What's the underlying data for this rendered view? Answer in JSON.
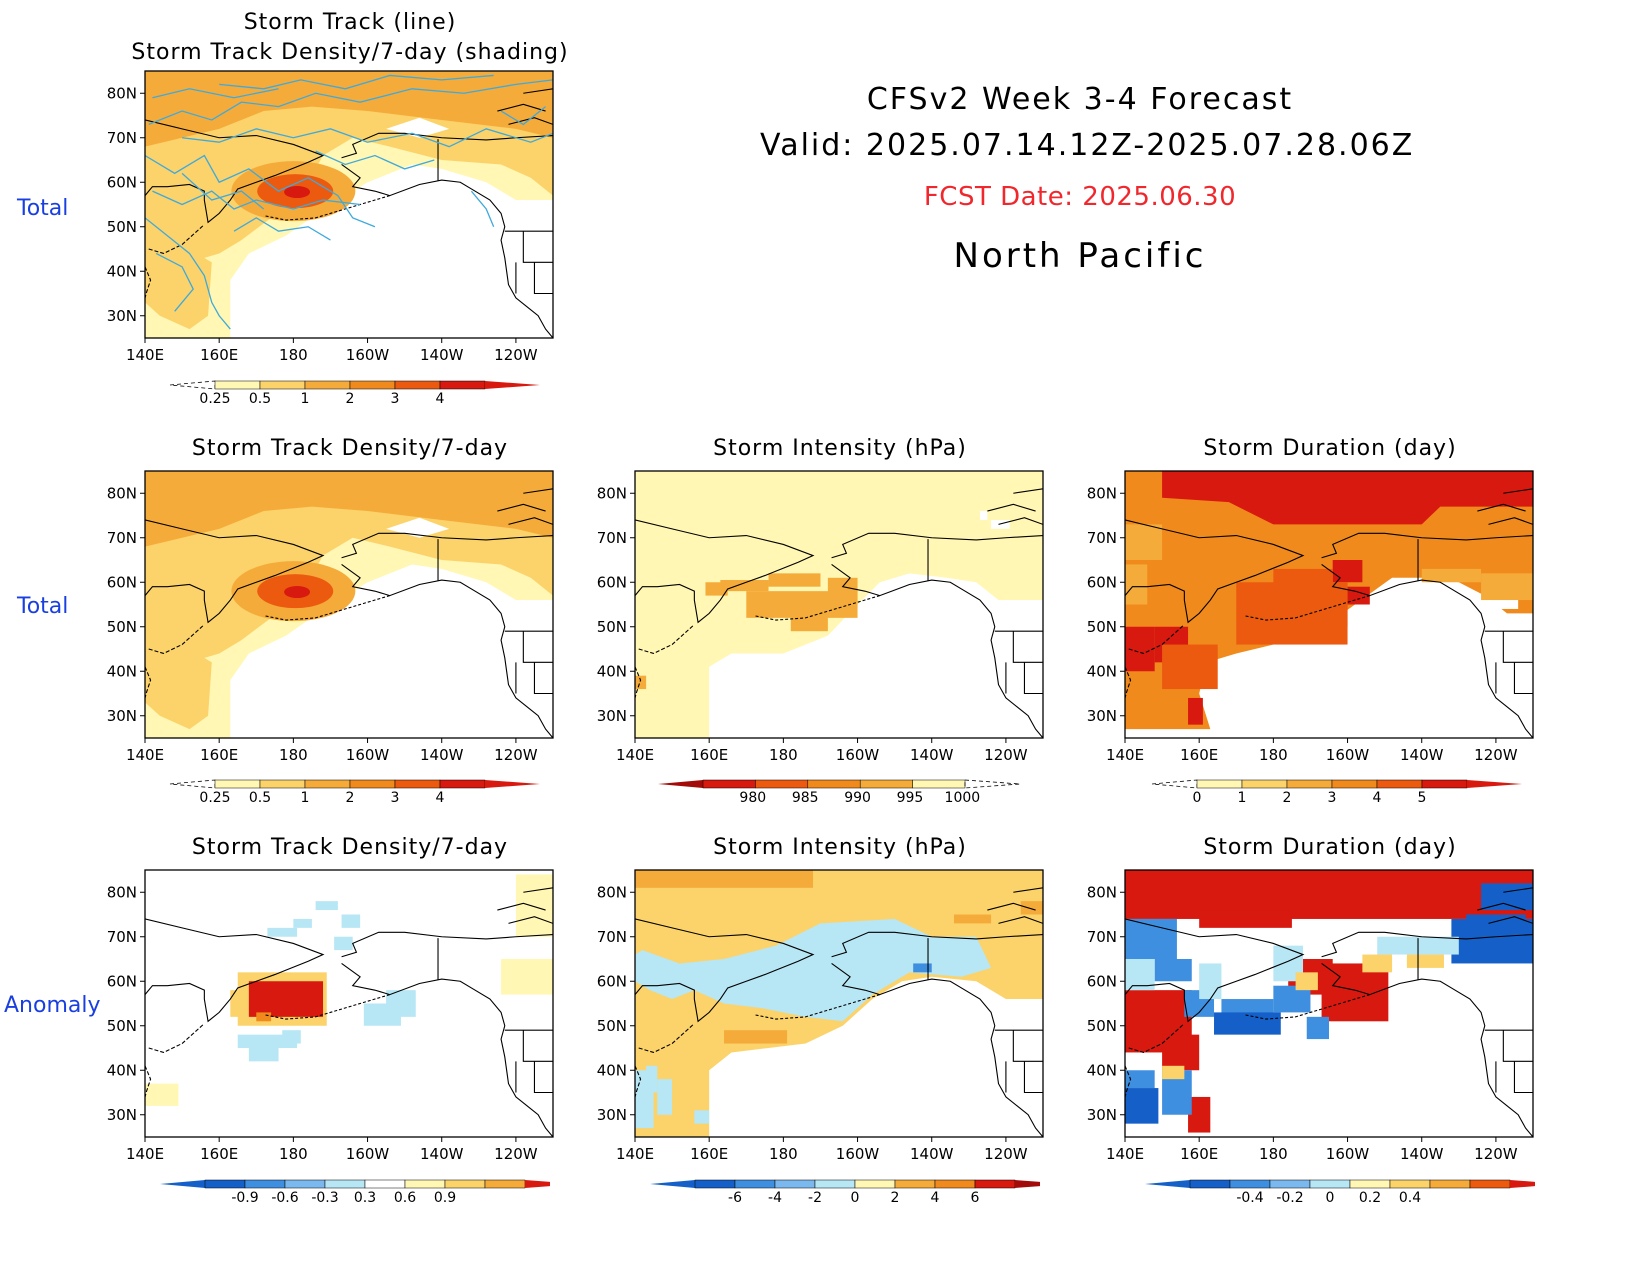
{
  "header": {
    "line1": "CFSv2 Week 3-4 Forecast",
    "line2": "Valid: 2025.07.14.12Z-2025.07.28.06Z",
    "fcst": "FCST Date: 2025.06.30",
    "region": "North Pacific"
  },
  "row_labels": {
    "top": "Total",
    "middle": "Total",
    "bottom": "Anomaly"
  },
  "axes": {
    "lon_ticks": [
      "140E",
      "160E",
      "180",
      "160W",
      "140W",
      "120W"
    ],
    "lat_ticks": [
      "80N",
      "70N",
      "60N",
      "50N",
      "40N",
      "30N"
    ]
  },
  "panels": {
    "p1_title1": "Storm Track (line)",
    "p1_title2": "Storm Track Density/7-day (shading)",
    "p2_title": "Storm Track Density/7-day",
    "p3_title": "Storm Intensity (hPa)",
    "p4_title": "Storm Duration (day)",
    "p5_title": "Storm Track Density/7-day",
    "p6_title": "Storm Intensity (hPa)",
    "p7_title": "Storm Duration (day)"
  },
  "colors": {
    "land_line": "#000000",
    "track_line": "#3fa9dc",
    "warm": [
      "#fff7b3",
      "#fbd36a",
      "#f5ab3a",
      "#f08a1c",
      "#ec5a10",
      "#d8190f",
      "#a30b0b"
    ],
    "cool": [
      "#1560c8",
      "#3f8fe0",
      "#7ab8ee",
      "#b7e6f5"
    ]
  },
  "colorbars": {
    "density_total": {
      "labels": [
        "0.25",
        "0.5",
        "1",
        "2",
        "3",
        "4"
      ]
    },
    "intensity_total": {
      "labels": [
        "980",
        "985",
        "990",
        "995",
        "1000"
      ]
    },
    "duration_total": {
      "labels": [
        "0",
        "1",
        "2",
        "3",
        "4",
        "5"
      ]
    },
    "density_anom": {
      "labels": [
        "-0.9",
        "-0.6",
        "-0.3",
        "0.3",
        "0.6",
        "0.9"
      ]
    },
    "intensity_anom": {
      "labels": [
        "-6",
        "-4",
        "-2",
        "0",
        "2",
        "4",
        "6"
      ]
    },
    "duration_anom": {
      "labels": [
        "-0.4",
        "-0.2",
        "0",
        "0.2",
        "0.4"
      ]
    }
  }
}
